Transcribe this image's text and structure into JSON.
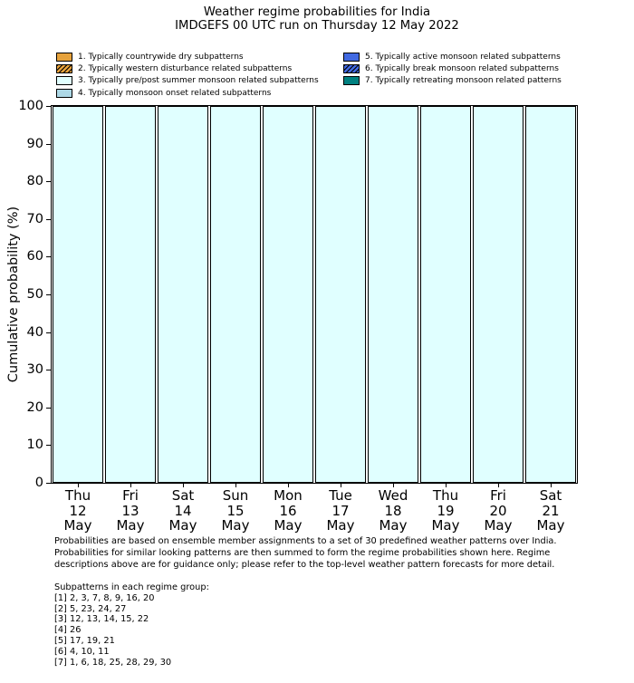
{
  "title": {
    "line1": "Weather regime probabilities for India",
    "line2": "IMDGEFS 00 UTC run on Thursday 12 May 2022"
  },
  "legend": {
    "items": [
      {
        "label": "1. Typically countrywide dry subpatterns",
        "color": "#E6A23C",
        "hatch": false,
        "column": 0
      },
      {
        "label": "2. Typically western disturbance related subpatterns",
        "color": "#E6A23C",
        "hatch": true,
        "column": 0
      },
      {
        "label": "3. Typically pre/post summer monsoon related subpatterns",
        "color": "#E0FFFF",
        "hatch": false,
        "column": 0
      },
      {
        "label": "4. Typically monsoon onset related subpatterns",
        "color": "#ADD8E6",
        "hatch": false,
        "column": 0
      },
      {
        "label": "5. Typically active monsoon related subpatterns",
        "color": "#4169E1",
        "hatch": false,
        "column": 1
      },
      {
        "label": "6. Typically break monsoon related subpatterns",
        "color": "#4169E1",
        "hatch": true,
        "column": 1
      },
      {
        "label": "7. Typically retreating monsoon related patterns",
        "color": "#008080",
        "hatch": false,
        "column": 1
      }
    ]
  },
  "y_axis": {
    "label": "Cumulative probability (%)",
    "ticks": [
      100,
      90,
      80,
      70,
      60,
      50,
      40,
      30,
      20,
      10,
      0
    ],
    "min": 0,
    "max": 100
  },
  "x_axis": {
    "labels": [
      [
        "Thu",
        "12",
        "May"
      ],
      [
        "Fri",
        "13",
        "May"
      ],
      [
        "Sat",
        "14",
        "May"
      ],
      [
        "Sun",
        "15",
        "May"
      ],
      [
        "Mon",
        "16",
        "May"
      ],
      [
        "Tue",
        "17",
        "May"
      ],
      [
        "Wed",
        "18",
        "May"
      ],
      [
        "Thu",
        "19",
        "May"
      ],
      [
        "Fri",
        "20",
        "May"
      ],
      [
        "Sat",
        "21",
        "May"
      ]
    ]
  },
  "chart_data": {
    "type": "bar",
    "stacked": true,
    "title": "Weather regime probabilities for India",
    "subtitle": "IMDGEFS 00 UTC run on Thursday 12 May 2022",
    "ylabel": "Cumulative probability (%)",
    "ylim": [
      0,
      100
    ],
    "grid": false,
    "legend_position": "top",
    "bar_edge_color": "#000000",
    "categories": [
      "Thu 12 May",
      "Fri 13 May",
      "Sat 14 May",
      "Sun 15 May",
      "Mon 16 May",
      "Tue 17 May",
      "Wed 18 May",
      "Thu 19 May",
      "Fri 20 May",
      "Sat 21 May"
    ],
    "series": [
      {
        "name": "1. Typically countrywide dry subpatterns",
        "color": "#E6A23C",
        "hatch": false,
        "values": [
          0,
          0,
          0,
          0,
          0,
          0,
          0,
          0,
          0,
          0
        ]
      },
      {
        "name": "2. Typically western disturbance related subpatterns",
        "color": "#E6A23C",
        "hatch": true,
        "values": [
          0,
          0,
          0,
          0,
          0,
          0,
          0,
          0,
          0,
          0
        ]
      },
      {
        "name": "3. Typically pre/post summer monsoon related subpatterns",
        "color": "#E0FFFF",
        "hatch": false,
        "values": [
          100,
          100,
          100,
          100,
          100,
          100,
          100,
          100,
          100,
          100
        ]
      },
      {
        "name": "4. Typically monsoon onset related subpatterns",
        "color": "#ADD8E6",
        "hatch": false,
        "values": [
          0,
          0,
          0,
          0,
          0,
          0,
          0,
          0,
          0,
          0
        ]
      },
      {
        "name": "5. Typically active monsoon related subpatterns",
        "color": "#4169E1",
        "hatch": false,
        "values": [
          0,
          0,
          0,
          0,
          0,
          0,
          0,
          0,
          0,
          0
        ]
      },
      {
        "name": "6. Typically break monsoon related subpatterns",
        "color": "#4169E1",
        "hatch": true,
        "values": [
          0,
          0,
          0,
          0,
          0,
          0,
          0,
          0,
          0,
          0
        ]
      },
      {
        "name": "7. Typically retreating monsoon related patterns",
        "color": "#008080",
        "hatch": false,
        "values": [
          0,
          0,
          0,
          0,
          0,
          0,
          0,
          0,
          0,
          0
        ]
      }
    ]
  },
  "footnote": {
    "lines": [
      "Probabilities are based on ensemble member assignments to a set of 30 predefined weather patterns over India.",
      "Probabilities for similar looking patterns are then summed to form the regime probabilities shown here. Regime",
      "descriptions above are for guidance only; please refer to the top-level weather pattern forecasts for more detail."
    ]
  },
  "subpatterns": {
    "heading": "Subpatterns in each regime group:",
    "lines": [
      "[1] 2, 3, 7, 8, 9, 16, 20",
      "[2] 5, 23, 24, 27",
      "[3] 12, 13, 14, 15, 22",
      "[4] 26",
      "[5] 17, 19, 21",
      "[6] 4, 10, 11",
      "[7] 1, 6, 18, 25, 28, 29, 30"
    ]
  }
}
